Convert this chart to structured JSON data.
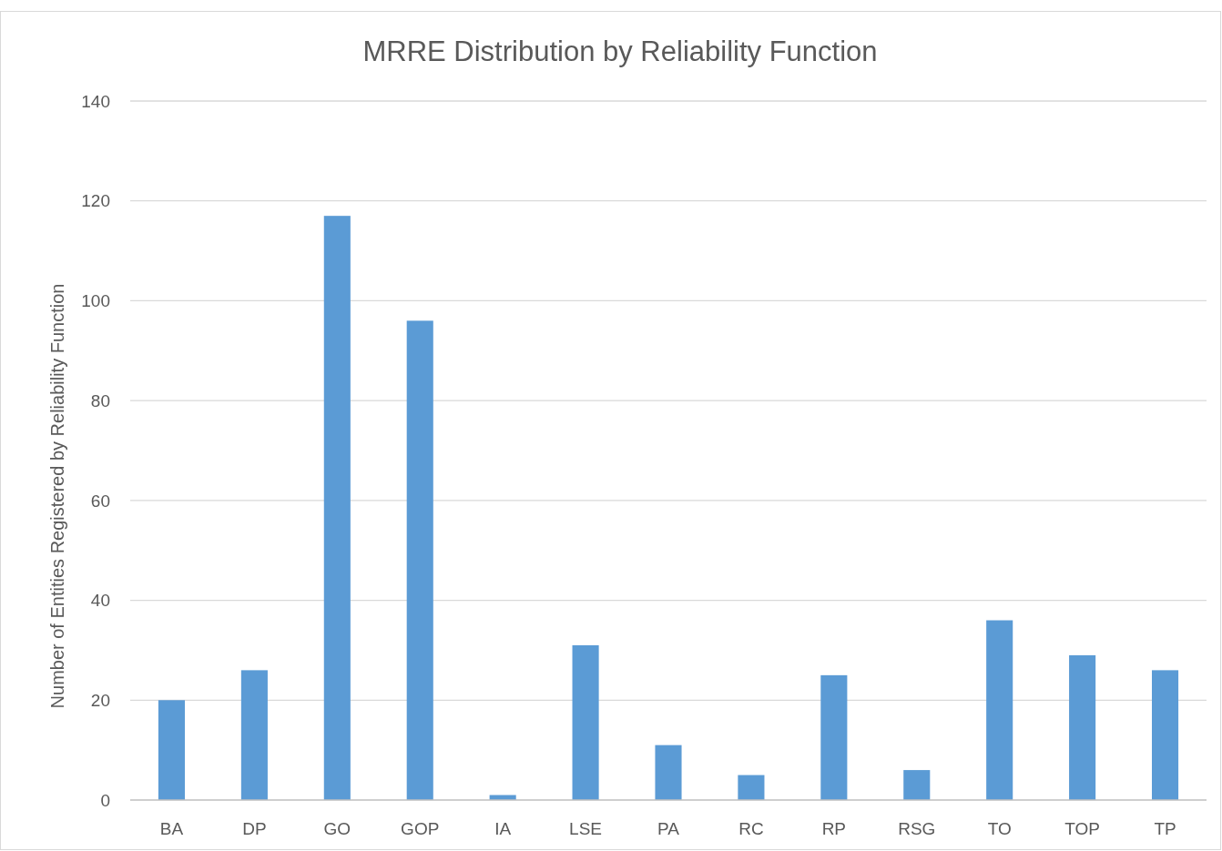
{
  "chart_data": {
    "type": "bar",
    "title": "MRRE Distribution by Reliability Function",
    "ylabel": "Number of Entities Registered by Reliability Function",
    "categories": [
      "BA",
      "DP",
      "GO",
      "GOP",
      "IA",
      "LSE",
      "PA",
      "RC",
      "RP",
      "RSG",
      "TO",
      "TOP",
      "TP"
    ],
    "values": [
      20,
      26,
      117,
      96,
      1,
      31,
      11,
      5,
      25,
      6,
      36,
      29,
      26
    ],
    "color": "#5b9bd5",
    "ylim": [
      0,
      140
    ],
    "yticks": [
      0,
      20,
      40,
      60,
      80,
      100,
      120,
      140
    ],
    "grid": "y"
  }
}
